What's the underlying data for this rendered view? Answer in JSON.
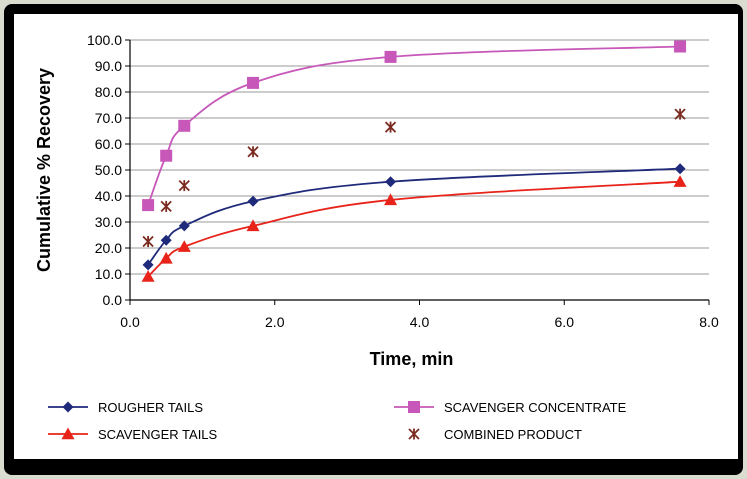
{
  "chart_data": {
    "type": "line",
    "title": "",
    "xlabel": "Time, min",
    "ylabel": "Cumulative % Recovery",
    "xlim": [
      0,
      8
    ],
    "ylim": [
      0,
      100
    ],
    "x_ticks": [
      "0.0",
      "2.0",
      "4.0",
      "6.0",
      "8.0"
    ],
    "y_ticks": [
      "0.0",
      "10.0",
      "20.0",
      "30.0",
      "40.0",
      "50.0",
      "60.0",
      "70.0",
      "80.0",
      "90.0",
      "100.0"
    ],
    "grid": "horizontal",
    "legend_position": "bottom",
    "series": [
      {
        "name": "ROUGHER TAILS",
        "color": "#1f2a7a",
        "marker": "diamond",
        "line": true,
        "x": [
          0.25,
          0.5,
          0.75,
          1.7,
          3.6,
          7.6
        ],
        "y": [
          13.5,
          23.0,
          28.5,
          38.0,
          45.5,
          50.5
        ]
      },
      {
        "name": "SCAVENGER CONCENTRATE",
        "color": "#c757b8",
        "marker": "square",
        "line": true,
        "x": [
          0.25,
          0.5,
          0.75,
          1.7,
          3.6,
          7.6
        ],
        "y": [
          36.5,
          55.5,
          67.0,
          83.5,
          93.5,
          97.5
        ]
      },
      {
        "name": "SCAVENGER TAILS",
        "color": "#e8231a",
        "marker": "triangle",
        "line": true,
        "x": [
          0.25,
          0.5,
          0.75,
          1.7,
          3.6,
          7.6
        ],
        "y": [
          9.0,
          16.0,
          20.5,
          28.5,
          38.5,
          45.5
        ]
      },
      {
        "name": "COMBINED PRODUCT",
        "color": "#7a2a1e",
        "marker": "asterisk",
        "line": false,
        "x": [
          0.25,
          0.5,
          0.75,
          1.7,
          3.6,
          7.6
        ],
        "y": [
          22.5,
          36.0,
          44.0,
          57.0,
          66.5,
          71.5
        ]
      }
    ]
  }
}
